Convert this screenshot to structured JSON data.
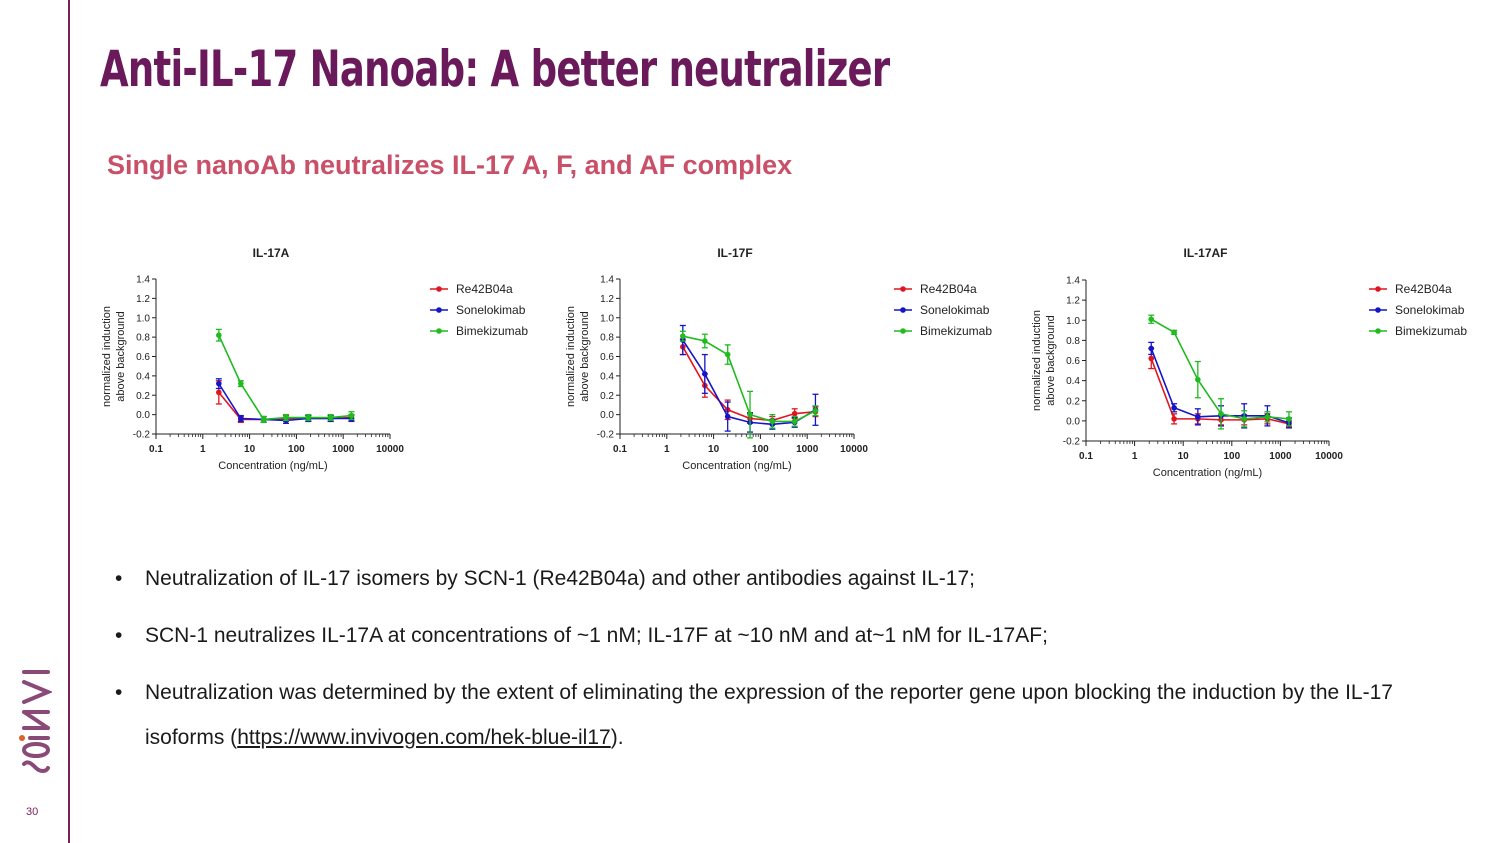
{
  "slide": {
    "title": "Anti-IL-17 Nanoab: A better neutralizer",
    "subtitle": "Single nanoAb neutralizes IL-17 A, F, and AF complex",
    "page_number": "30",
    "logo_text": "SCiNAi"
  },
  "colors": {
    "brand": "#6a1a5a",
    "subtitle": "#c95069",
    "Re42B04a": "#e0161f",
    "Sonelokimab": "#1515c8",
    "Bimekizumab": "#1fbb1f"
  },
  "bullets": {
    "b1": "Neutralization of IL-17 isomers by SCN-1 (Re42B04a) and other antibodies against IL-17;",
    "b2": "SCN-1 neutralizes IL-17A at concentrations of ~1 nM; IL-17F at ~10 nM and at~1 nM for IL-17AF;",
    "b3_text": "Neutralization was determined by the extent of eliminating the expression of the reporter gene upon blocking the induction by the IL-17 isoforms (",
    "b3_link": "https://www.invivogen.com/hek-blue-il17",
    "b3_end": ")."
  },
  "chart_data": [
    {
      "id": "a",
      "type": "line",
      "title": "IL-17A",
      "xlabel": "Concentration (ng/mL)",
      "ylabel": [
        "normalized induction",
        "above background"
      ],
      "xscale": "log",
      "xlim": [
        0.1,
        10000
      ],
      "ylim": [
        -0.2,
        1.4
      ],
      "xticks": [
        "0.1",
        "1",
        "10",
        "100",
        "1000",
        "10000"
      ],
      "yticks": [
        "-0.2",
        "0.0",
        "0.2",
        "0.4",
        "0.6",
        "0.8",
        "1.0",
        "1.2",
        "1.4"
      ],
      "legend_position": "right",
      "x": [
        2.2,
        6.5,
        20,
        60,
        180,
        540,
        1500
      ],
      "series": [
        {
          "name": "Re42B04a",
          "color": "#e0161f",
          "values": [
            0.23,
            -0.05,
            -0.05,
            -0.04,
            -0.04,
            -0.04,
            -0.03
          ],
          "errors": [
            0.12,
            0.03,
            0.03,
            0.03,
            0.03,
            0.03,
            0.03
          ]
        },
        {
          "name": "Sonelokimab",
          "color": "#1515c8",
          "values": [
            0.32,
            -0.04,
            -0.05,
            -0.06,
            -0.04,
            -0.04,
            -0.04
          ],
          "errors": [
            0.05,
            0.03,
            0.03,
            0.03,
            0.03,
            0.03,
            0.03
          ]
        },
        {
          "name": "Bimekizumab",
          "color": "#1fbb1f",
          "values": [
            0.82,
            0.32,
            -0.05,
            -0.03,
            -0.03,
            -0.03,
            -0.01
          ],
          "errors": [
            0.06,
            0.03,
            0.03,
            0.03,
            0.03,
            0.03,
            0.04
          ]
        }
      ]
    },
    {
      "id": "f",
      "type": "line",
      "title": "IL-17F",
      "xlabel": "Concentration (ng/mL)",
      "ylabel": [
        "normalized induction",
        "above background"
      ],
      "xscale": "log",
      "xlim": [
        0.1,
        10000
      ],
      "ylim": [
        -0.2,
        1.4
      ],
      "xticks": [
        "0.1",
        "1",
        "10",
        "100",
        "1000",
        "10000"
      ],
      "yticks": [
        "-0.2",
        "0.0",
        "0.2",
        "0.4",
        "0.6",
        "0.8",
        "1.0",
        "1.2",
        "1.4"
      ],
      "legend_position": "right",
      "x": [
        2.2,
        6.5,
        20,
        60,
        180,
        540,
        1500
      ],
      "series": [
        {
          "name": "Re42B04a",
          "color": "#e0161f",
          "values": [
            0.7,
            0.3,
            0.05,
            -0.04,
            -0.06,
            0.01,
            0.03
          ],
          "errors": [
            0.08,
            0.12,
            0.1,
            0.05,
            0.04,
            0.05,
            0.05
          ]
        },
        {
          "name": "Sonelokimab",
          "color": "#1515c8",
          "values": [
            0.77,
            0.42,
            -0.02,
            -0.08,
            -0.1,
            -0.08,
            0.05
          ],
          "errors": [
            0.15,
            0.2,
            0.15,
            0.1,
            0.05,
            0.05,
            0.16
          ]
        },
        {
          "name": "Bimekizumab",
          "color": "#1fbb1f",
          "values": [
            0.81,
            0.76,
            0.62,
            0.0,
            -0.07,
            -0.07,
            0.04
          ],
          "errors": [
            0.05,
            0.07,
            0.1,
            0.24,
            0.07,
            0.05,
            0.05
          ]
        }
      ]
    },
    {
      "id": "af",
      "type": "line",
      "title": "IL-17AF",
      "xlabel": "Concentration (ng/mL)",
      "ylabel": [
        "normalized induction",
        "above background"
      ],
      "xscale": "log",
      "xlim": [
        0.1,
        10000
      ],
      "ylim": [
        -0.2,
        1.4
      ],
      "xticks": [
        "0.1",
        "1",
        "10",
        "100",
        "1000",
        "10000"
      ],
      "yticks": [
        "-0.2",
        "0.0",
        "0.2",
        "0.4",
        "0.6",
        "0.8",
        "1.0",
        "1.2",
        "1.4"
      ],
      "legend_position": "right",
      "x": [
        2.2,
        6.5,
        20,
        60,
        180,
        540,
        1500
      ],
      "series": [
        {
          "name": "Re42B04a",
          "color": "#e0161f",
          "values": [
            0.62,
            0.02,
            0.02,
            0.01,
            0.01,
            0.02,
            -0.03
          ],
          "errors": [
            0.1,
            0.05,
            0.05,
            0.05,
            0.05,
            0.05,
            0.03
          ]
        },
        {
          "name": "Sonelokimab",
          "color": "#1515c8",
          "values": [
            0.72,
            0.13,
            0.04,
            0.05,
            0.05,
            0.05,
            -0.02
          ],
          "errors": [
            0.06,
            0.04,
            0.08,
            0.1,
            0.12,
            0.1,
            0.05
          ]
        },
        {
          "name": "Bimekizumab",
          "color": "#1fbb1f",
          "values": [
            1.01,
            0.88,
            0.41,
            0.07,
            0.02,
            0.04,
            0.02
          ],
          "errors": [
            0.04,
            0.02,
            0.18,
            0.15,
            0.08,
            0.05,
            0.07
          ]
        }
      ]
    }
  ]
}
